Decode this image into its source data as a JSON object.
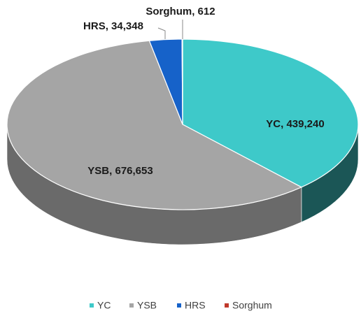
{
  "chart_data": {
    "type": "pie3d",
    "categories": [
      "YC",
      "YSB",
      "HRS",
      "Sorghum"
    ],
    "values": [
      439240,
      676653,
      34348,
      612
    ],
    "value_labels": [
      "YC, 439,240",
      "YSB, 676,653",
      "HRS, 34,348",
      "Sorghum, 612"
    ],
    "colors": [
      "#3ec9c9",
      "#a5a5a5",
      "#1662c9",
      "#c0392b"
    ],
    "side_colors": [
      "#1b5656",
      "#6a6a6a",
      "#0d3a7a",
      "#7a2018"
    ],
    "legend": "bottom"
  }
}
